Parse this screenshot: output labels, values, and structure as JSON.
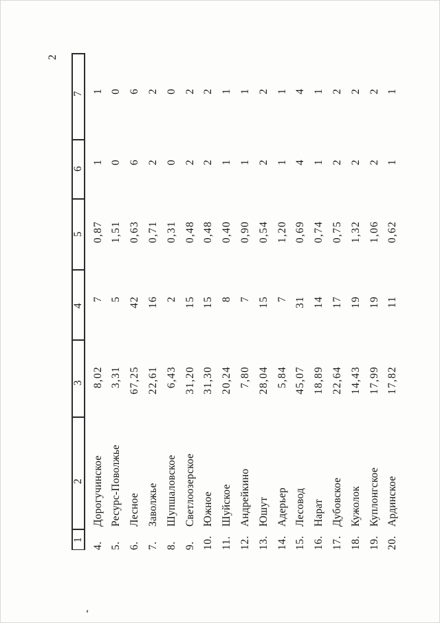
{
  "page": {
    "number": "2"
  },
  "colors": {
    "paper": "#fdfdfc",
    "ink": "#161616",
    "rule_line": "#2b2b2b"
  },
  "table": {
    "column_headers": [
      "1",
      "2",
      "3",
      "4",
      "5",
      "6",
      "7"
    ],
    "rows": [
      {
        "num": "4.",
        "name": "Дорогучинское",
        "c3": "8,02",
        "c4": "7",
        "c5": "0,87",
        "c6": "1",
        "c7": "1"
      },
      {
        "num": "5.",
        "name": "Ресурс-Поволжье",
        "c3": "3,31",
        "c4": "5",
        "c5": "1,51",
        "c6": "0",
        "c7": "0"
      },
      {
        "num": "6.",
        "name": "Лесное",
        "c3": "67,25",
        "c4": "42",
        "c5": "0,63",
        "c6": "6",
        "c7": "6"
      },
      {
        "num": "7.",
        "name": "Заволжье",
        "c3": "22,61",
        "c4": "16",
        "c5": "0,71",
        "c6": "2",
        "c7": "2"
      },
      {
        "num": "8.",
        "name": "Шупшаловское",
        "c3": "6,43",
        "c4": "2",
        "c5": "0,31",
        "c6": "0",
        "c7": "0"
      },
      {
        "num": "9.",
        "name": "Светлоозерское",
        "c3": "31,20",
        "c4": "15",
        "c5": "0,48",
        "c6": "2",
        "c7": "2"
      },
      {
        "num": "10.",
        "name": "Южное",
        "c3": "31,30",
        "c4": "15",
        "c5": "0,48",
        "c6": "2",
        "c7": "2"
      },
      {
        "num": "11.",
        "name": "Шуйское",
        "c3": "20,24",
        "c4": "8",
        "c5": "0,40",
        "c6": "1",
        "c7": "1"
      },
      {
        "num": "12.",
        "name": "Андрейкино",
        "c3": "7,80",
        "c4": "7",
        "c5": "0,90",
        "c6": "1",
        "c7": "1"
      },
      {
        "num": "13.",
        "name": "Юшут",
        "c3": "28,04",
        "c4": "15",
        "c5": "0,54",
        "c6": "2",
        "c7": "2"
      },
      {
        "num": "14.",
        "name": "Адерьер",
        "c3": "5,84",
        "c4": "7",
        "c5": "1,20",
        "c6": "1",
        "c7": "1"
      },
      {
        "num": "15.",
        "name": "Лесовод",
        "c3": "45,07",
        "c4": "31",
        "c5": "0,69",
        "c6": "4",
        "c7": "4"
      },
      {
        "num": "16.",
        "name": "Нарат",
        "c3": "18,89",
        "c4": "14",
        "c5": "0,74",
        "c6": "1",
        "c7": "1"
      },
      {
        "num": "17.",
        "name": "Дубовское",
        "c3": "22,64",
        "c4": "17",
        "c5": "0,75",
        "c6": "2",
        "c7": "2"
      },
      {
        "num": "18.",
        "name": "Кужолок",
        "c3": "14,43",
        "c4": "19",
        "c5": "1,32",
        "c6": "2",
        "c7": "2"
      },
      {
        "num": "19.",
        "name": "Куплонгское",
        "c3": "17,99",
        "c4": "19",
        "c5": "1,06",
        "c6": "2",
        "c7": "2"
      },
      {
        "num": "20.",
        "name": "Ардинское",
        "c3": "17,82",
        "c4": "11",
        "c5": "0,62",
        "c6": "1",
        "c7": "1"
      }
    ]
  }
}
